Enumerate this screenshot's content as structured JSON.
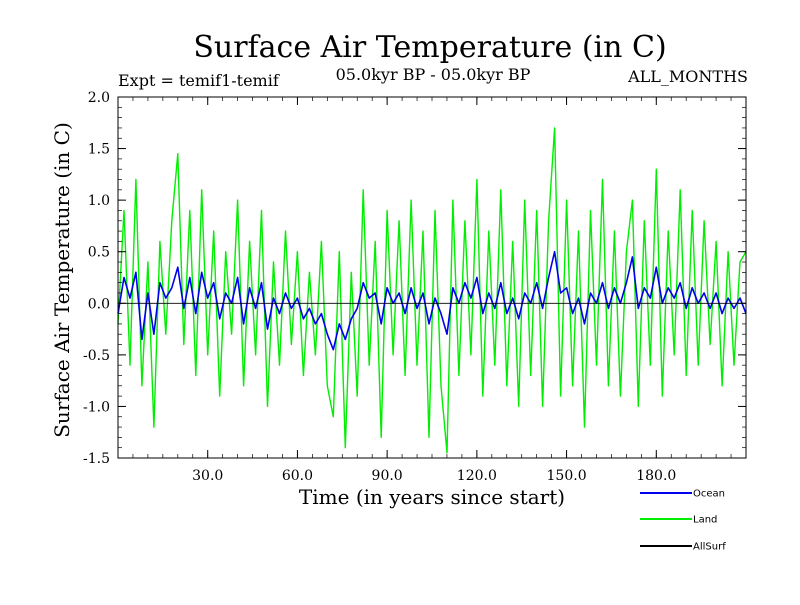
{
  "chart_data": {
    "type": "line",
    "title": "Surface Air Temperature (in C)",
    "subtitle": "05.0kyr BP - 05.0kyr BP",
    "left_label": "Expt = temif1-temif",
    "right_label": "ALL_MONTHS",
    "xlabel": "Time (in years since start)",
    "ylabel": "Surface Air Temperature (in C)",
    "xlim": [
      0,
      210
    ],
    "ylim": [
      -1.5,
      2.0
    ],
    "x_ticks": [
      30,
      60,
      90,
      120,
      150,
      180
    ],
    "x_tick_labels": [
      "30.0",
      "60.0",
      "90.0",
      "120.0",
      "150.0",
      "180.0"
    ],
    "y_ticks": [
      -1.5,
      -1.0,
      -0.5,
      0.0,
      0.5,
      1.0,
      1.5,
      2.0
    ],
    "y_tick_labels": [
      "-1.5",
      "-1.0",
      "-0.5",
      "0.0",
      "0.5",
      "1.0",
      "1.5",
      "2.0"
    ],
    "legend": [
      {
        "name": "Ocean",
        "color": "#0000ee"
      },
      {
        "name": "Land",
        "color": "#00ee00"
      },
      {
        "name": "AllSurf",
        "color": "#000000"
      }
    ],
    "series": [
      {
        "name": "Land",
        "color": "#00ee00",
        "x": [
          0,
          2,
          4,
          6,
          8,
          10,
          12,
          14,
          16,
          18,
          20,
          22,
          24,
          26,
          28,
          30,
          32,
          34,
          36,
          38,
          40,
          42,
          44,
          46,
          48,
          50,
          52,
          54,
          56,
          58,
          60,
          62,
          64,
          66,
          68,
          70,
          72,
          74,
          76,
          78,
          80,
          82,
          84,
          86,
          88,
          90,
          92,
          94,
          96,
          98,
          100,
          102,
          104,
          106,
          108,
          110,
          112,
          114,
          116,
          118,
          120,
          122,
          124,
          126,
          128,
          130,
          132,
          134,
          136,
          138,
          140,
          142,
          144,
          146,
          148,
          150,
          152,
          154,
          156,
          158,
          160,
          162,
          164,
          166,
          168,
          170,
          172,
          174,
          176,
          178,
          180,
          182,
          184,
          186,
          188,
          190,
          192,
          194,
          196,
          198,
          200,
          202,
          204,
          206,
          208,
          210
        ],
        "values": [
          -0.2,
          0.9,
          -0.6,
          1.2,
          -0.8,
          0.4,
          -1.2,
          0.6,
          -0.3,
          0.8,
          1.45,
          -0.4,
          0.9,
          -0.7,
          1.1,
          -0.5,
          0.7,
          -0.9,
          0.5,
          -0.3,
          1.0,
          -0.8,
          0.6,
          -0.5,
          0.9,
          -1.0,
          0.4,
          -0.6,
          0.7,
          -0.4,
          0.5,
          -0.7,
          0.3,
          -0.5,
          0.6,
          -0.8,
          -1.1,
          0.5,
          -1.4,
          0.3,
          -0.9,
          1.1,
          -0.6,
          0.6,
          -1.3,
          0.9,
          -0.5,
          0.8,
          -0.7,
          1.0,
          -0.6,
          0.7,
          -1.3,
          0.9,
          -0.8,
          -1.45,
          1.0,
          -0.7,
          0.8,
          -0.5,
          1.2,
          -0.9,
          0.7,
          -0.6,
          1.1,
          -0.8,
          0.6,
          -1.0,
          1.0,
          -0.7,
          0.9,
          -1.0,
          0.8,
          1.7,
          -0.9,
          1.0,
          -0.8,
          0.7,
          -1.2,
          0.9,
          -0.6,
          1.2,
          -0.8,
          0.7,
          -0.9,
          0.5,
          1.0,
          -1.0,
          0.8,
          -0.6,
          1.3,
          -0.9,
          0.7,
          -0.5,
          1.1,
          -0.7,
          0.9,
          -0.6,
          0.8,
          -0.4,
          0.6,
          -0.8,
          0.5,
          -0.6,
          0.4,
          0.5
        ]
      },
      {
        "name": "Ocean",
        "color": "#0000ee",
        "x": [
          0,
          2,
          4,
          6,
          8,
          10,
          12,
          14,
          16,
          18,
          20,
          22,
          24,
          26,
          28,
          30,
          32,
          34,
          36,
          38,
          40,
          42,
          44,
          46,
          48,
          50,
          52,
          54,
          56,
          58,
          60,
          62,
          64,
          66,
          68,
          70,
          72,
          74,
          76,
          78,
          80,
          82,
          84,
          86,
          88,
          90,
          92,
          94,
          96,
          98,
          100,
          102,
          104,
          106,
          108,
          110,
          112,
          114,
          116,
          118,
          120,
          122,
          124,
          126,
          128,
          130,
          132,
          134,
          136,
          138,
          140,
          142,
          144,
          146,
          148,
          150,
          152,
          154,
          156,
          158,
          160,
          162,
          164,
          166,
          168,
          170,
          172,
          174,
          176,
          178,
          180,
          182,
          184,
          186,
          188,
          190,
          192,
          194,
          196,
          198,
          200,
          202,
          204,
          206,
          208,
          210
        ],
        "values": [
          -0.1,
          0.25,
          0.05,
          0.3,
          -0.35,
          0.1,
          -0.3,
          0.2,
          0.05,
          0.15,
          0.35,
          -0.05,
          0.25,
          -0.1,
          0.3,
          0.05,
          0.2,
          -0.15,
          0.1,
          0.0,
          0.25,
          -0.2,
          0.15,
          -0.05,
          0.2,
          -0.25,
          0.05,
          -0.1,
          0.1,
          -0.05,
          0.05,
          -0.15,
          -0.05,
          -0.2,
          -0.1,
          -0.3,
          -0.45,
          -0.2,
          -0.35,
          -0.15,
          -0.05,
          0.2,
          0.05,
          0.1,
          -0.2,
          0.15,
          0.0,
          0.1,
          -0.1,
          0.15,
          -0.05,
          0.1,
          -0.2,
          0.05,
          -0.1,
          -0.3,
          0.15,
          0.0,
          0.2,
          0.05,
          0.25,
          -0.1,
          0.1,
          -0.05,
          0.2,
          -0.1,
          0.05,
          -0.15,
          0.1,
          0.0,
          0.2,
          -0.05,
          0.25,
          0.5,
          0.1,
          0.15,
          -0.1,
          0.05,
          -0.2,
          0.1,
          0.0,
          0.2,
          -0.05,
          0.15,
          0.0,
          0.2,
          0.45,
          -0.05,
          0.15,
          0.05,
          0.35,
          0.0,
          0.15,
          0.05,
          0.2,
          -0.05,
          0.15,
          0.0,
          0.1,
          -0.05,
          0.1,
          -0.1,
          0.05,
          -0.05,
          0.05,
          -0.1
        ]
      },
      {
        "name": "AllSurf",
        "color": "#000000",
        "x": [
          0,
          210
        ],
        "values": [
          0.0,
          0.0
        ]
      }
    ]
  }
}
